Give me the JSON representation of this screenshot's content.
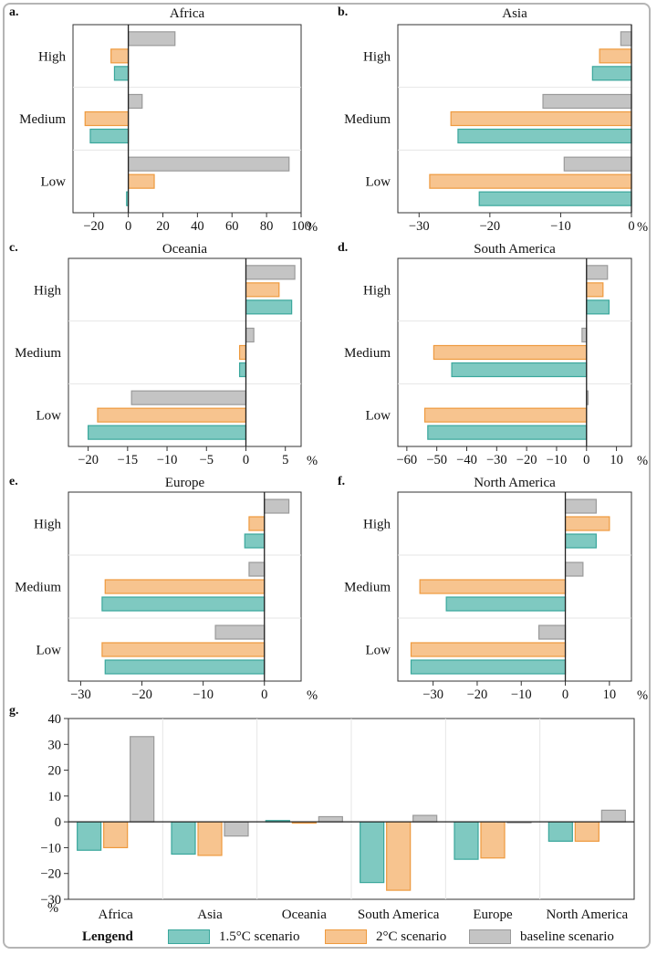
{
  "legend": {
    "title": "Lengend",
    "items": [
      {
        "label": "1.5°C scenario",
        "fill": "#7fc9c1",
        "stroke": "#3aa79c"
      },
      {
        "label": "2°C scenario",
        "fill": "#f7c48f",
        "stroke": "#ee9a3e"
      },
      {
        "label": "baseline scenario",
        "fill": "#c4c4c4",
        "stroke": "#9a9a9a"
      }
    ]
  },
  "chart_data": [
    {
      "panel": "a.",
      "title": "Africa",
      "type": "bar",
      "orientation": "horizontal",
      "categories": [
        "High",
        "Medium",
        "Low"
      ],
      "unit": "%",
      "xlim": [
        -32,
        100
      ],
      "xticks": [
        -20,
        0,
        20,
        40,
        60,
        80,
        100
      ],
      "series": [
        {
          "name": "baseline scenario",
          "values": [
            27,
            8,
            93
          ]
        },
        {
          "name": "2°C scenario",
          "values": [
            -10,
            -25,
            15
          ]
        },
        {
          "name": "1.5°C scenario",
          "values": [
            -8,
            -22,
            -1
          ]
        }
      ]
    },
    {
      "panel": "b.",
      "title": "Asia",
      "type": "bar",
      "orientation": "horizontal",
      "categories": [
        "High",
        "Medium",
        "Low"
      ],
      "unit": "%",
      "xlim": [
        -33,
        0
      ],
      "xticks": [
        -30,
        -20,
        -10,
        0
      ],
      "series": [
        {
          "name": "baseline scenario",
          "values": [
            -1.5,
            -12.5,
            -9.5
          ]
        },
        {
          "name": "2°C scenario",
          "values": [
            -4.5,
            -25.5,
            -28.5
          ]
        },
        {
          "name": "1.5°C scenario",
          "values": [
            -5.5,
            -24.5,
            -21.5
          ]
        }
      ]
    },
    {
      "panel": "c.",
      "title": "Oceania",
      "type": "bar",
      "orientation": "horizontal",
      "categories": [
        "High",
        "Medium",
        "Low"
      ],
      "unit": "%",
      "xlim": [
        -22.5,
        7
      ],
      "xticks": [
        -20,
        -15,
        -10,
        -5,
        0,
        5
      ],
      "series": [
        {
          "name": "baseline scenario",
          "values": [
            6.2,
            1.0,
            -14.5
          ]
        },
        {
          "name": "2°C scenario",
          "values": [
            4.2,
            -0.8,
            -18.8
          ]
        },
        {
          "name": "1.5°C scenario",
          "values": [
            5.8,
            -0.8,
            -20.0
          ]
        }
      ]
    },
    {
      "panel": "d.",
      "title": "South America",
      "type": "bar",
      "orientation": "horizontal",
      "categories": [
        "High",
        "Medium",
        "Low"
      ],
      "unit": "%",
      "xlim": [
        -63,
        15
      ],
      "xticks": [
        -60,
        -50,
        -40,
        -30,
        -20,
        -10,
        0,
        10
      ],
      "series": [
        {
          "name": "baseline scenario",
          "values": [
            7,
            -1.5,
            0.5
          ]
        },
        {
          "name": "2°C scenario",
          "values": [
            5.5,
            -51,
            -54
          ]
        },
        {
          "name": "1.5°C scenario",
          "values": [
            7.5,
            -45,
            -53
          ]
        }
      ]
    },
    {
      "panel": "e.",
      "title": "Europe",
      "type": "bar",
      "orientation": "horizontal",
      "categories": [
        "High",
        "Medium",
        "Low"
      ],
      "unit": "%",
      "xlim": [
        -32,
        6
      ],
      "xticks": [
        -30,
        -20,
        -10,
        0
      ],
      "series": [
        {
          "name": "baseline scenario",
          "values": [
            4,
            -2.5,
            -8
          ]
        },
        {
          "name": "2°C scenario",
          "values": [
            -2.5,
            -26,
            -26.5
          ]
        },
        {
          "name": "1.5°C scenario",
          "values": [
            -3.2,
            -26.5,
            -26
          ]
        }
      ]
    },
    {
      "panel": "f.",
      "title": "North America",
      "type": "bar",
      "orientation": "horizontal",
      "categories": [
        "High",
        "Medium",
        "Low"
      ],
      "unit": "%",
      "xlim": [
        -38,
        15
      ],
      "xticks": [
        -30,
        -20,
        -10,
        0,
        10
      ],
      "series": [
        {
          "name": "baseline scenario",
          "values": [
            7,
            4,
            -6
          ]
        },
        {
          "name": "2°C scenario",
          "values": [
            10,
            -33,
            -35
          ]
        },
        {
          "name": "1.5°C scenario",
          "values": [
            7,
            -27,
            -35
          ]
        }
      ]
    },
    {
      "panel": "g.",
      "type": "bar",
      "orientation": "vertical",
      "unit": "%",
      "categories": [
        "Africa",
        "Asia",
        "Oceania",
        "South America",
        "Europe",
        "North America"
      ],
      "ylim": [
        -30,
        40
      ],
      "yticks": [
        -30,
        -20,
        -10,
        0,
        10,
        20,
        30,
        40
      ],
      "series": [
        {
          "name": "1.5°C scenario",
          "values": [
            -11,
            -12.5,
            0.5,
            -23.5,
            -14.5,
            -7.5
          ]
        },
        {
          "name": "2°C scenario",
          "values": [
            -10,
            -13,
            -0.5,
            -26.5,
            -14,
            -7.5
          ]
        },
        {
          "name": "baseline scenario",
          "values": [
            33,
            -5.5,
            2,
            2.5,
            -0.3,
            4.5
          ]
        }
      ]
    }
  ]
}
